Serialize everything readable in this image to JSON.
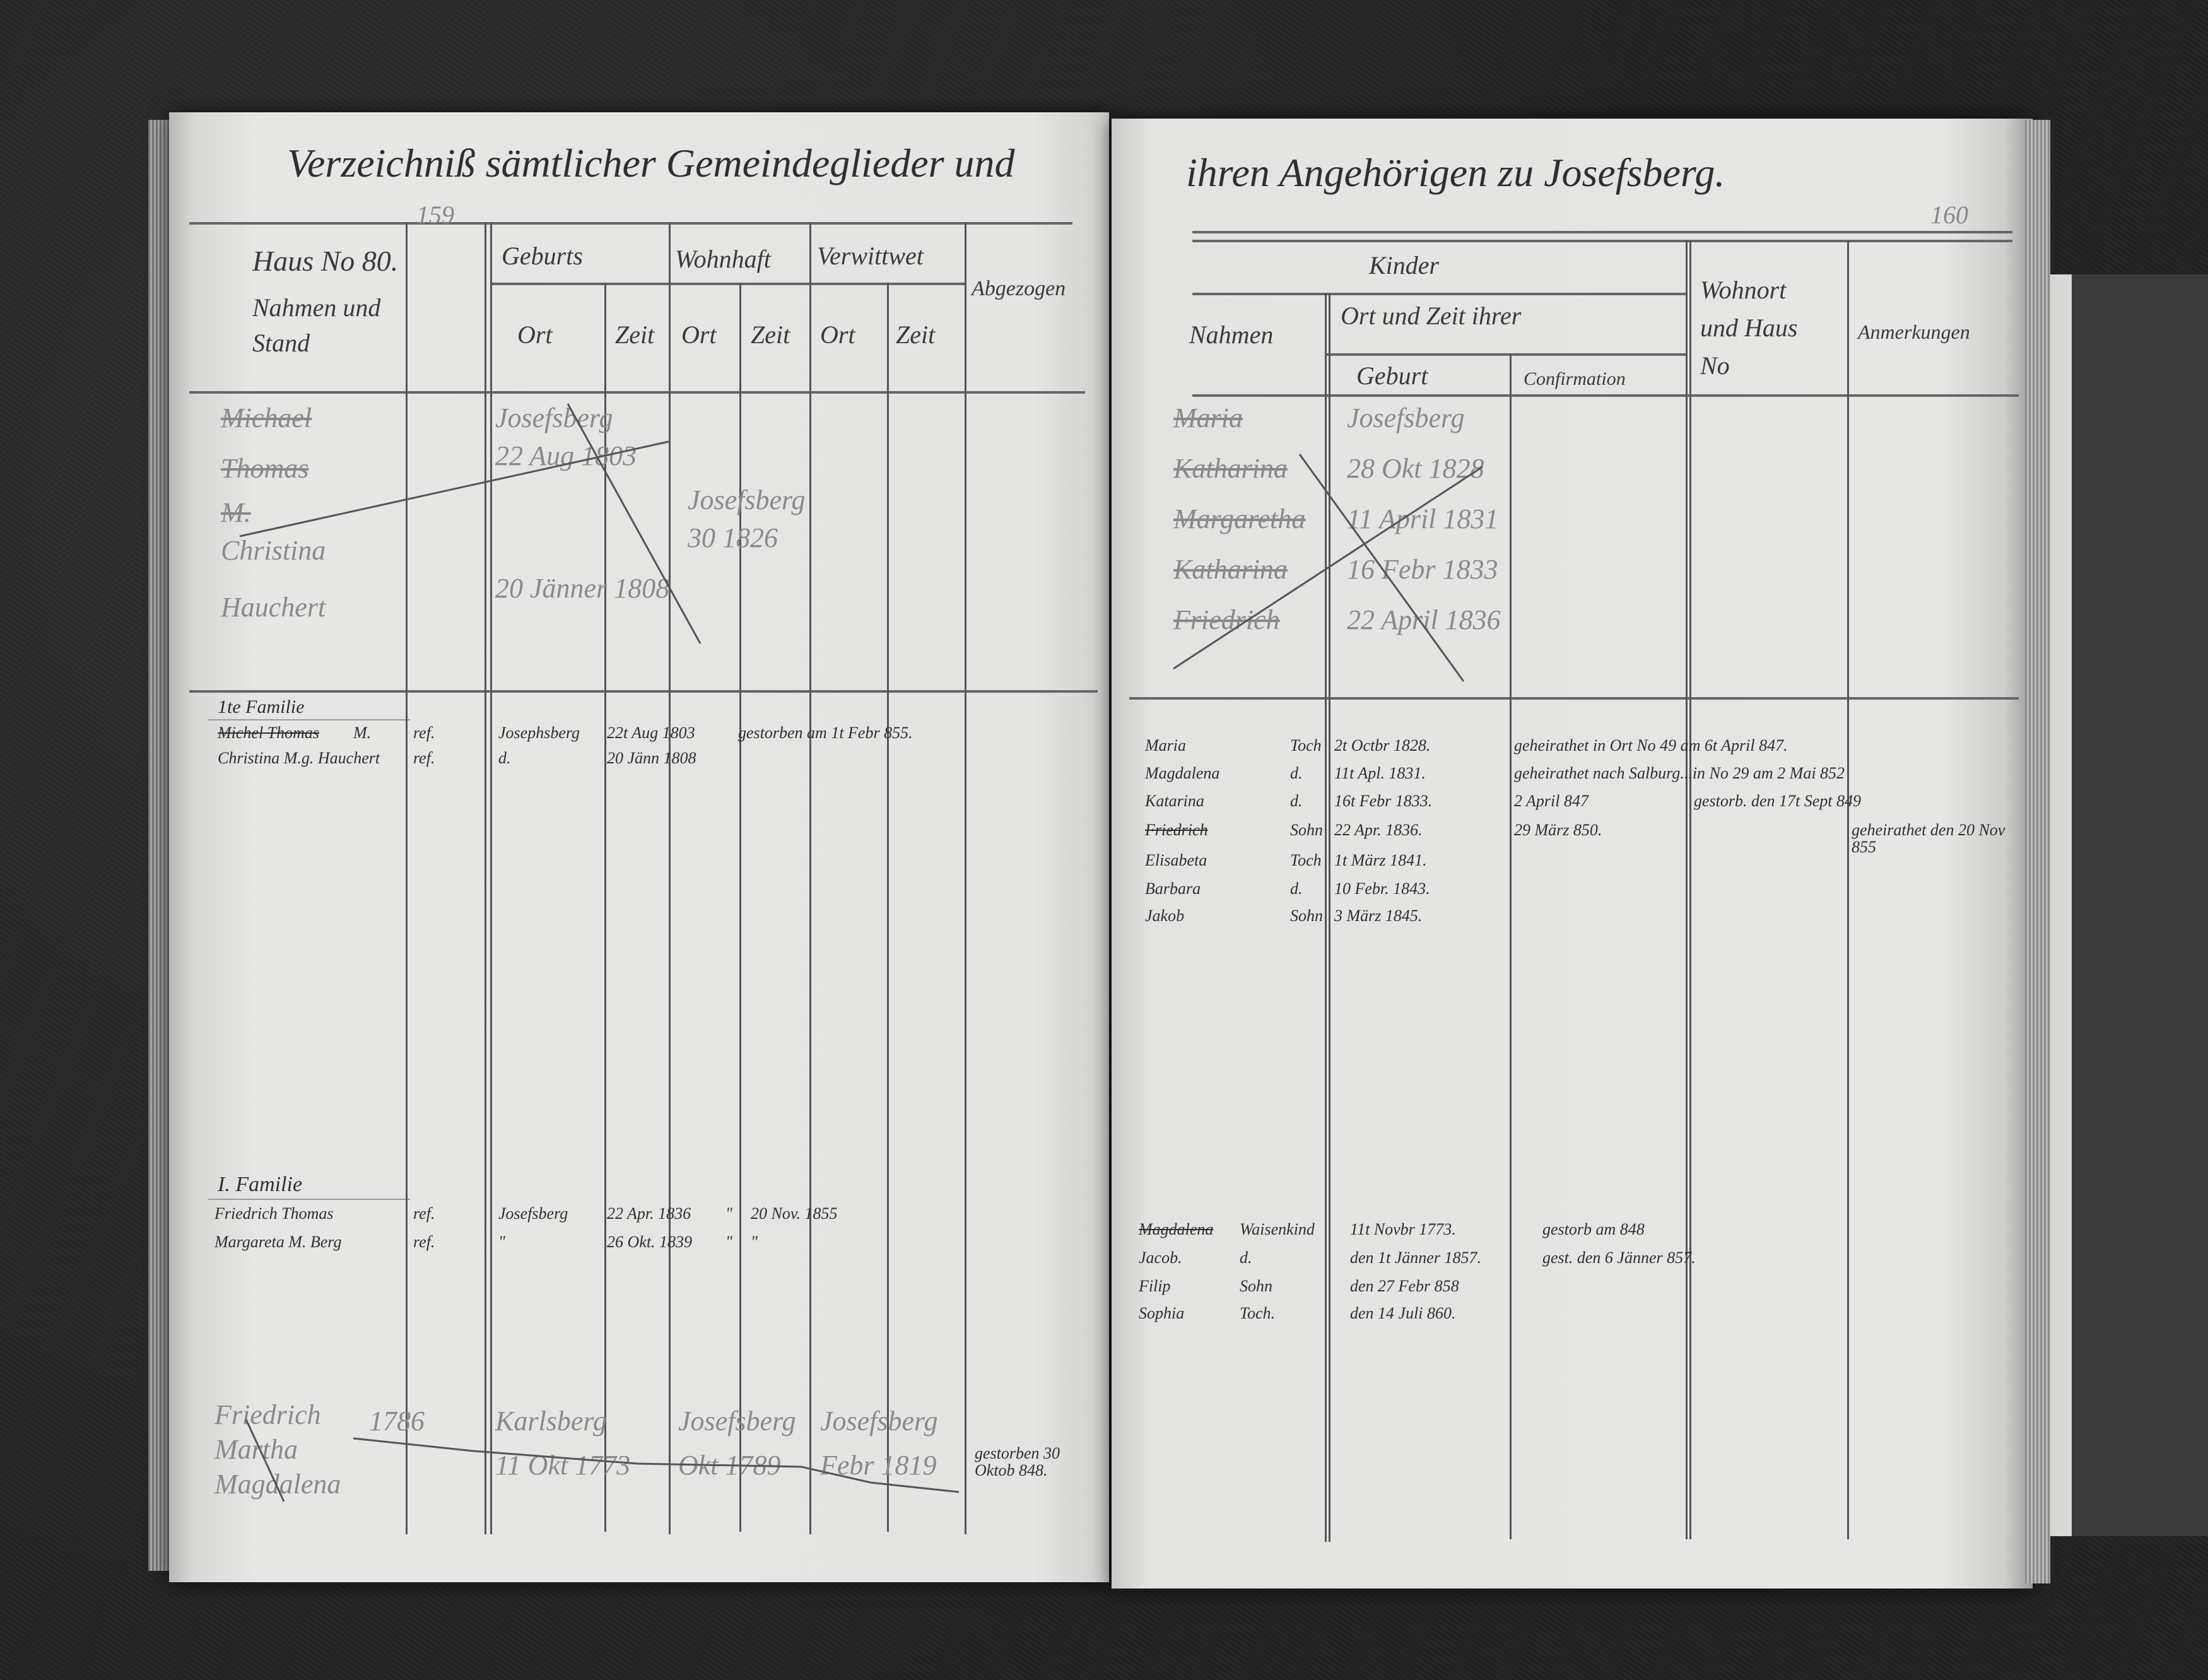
{
  "left_page": {
    "title": "Verzeichniß sämtlicher Gemeindeglieder und",
    "pencil_page_number": "159",
    "headers": {
      "house_no": "Haus No 80.",
      "name_stand": "Nahmen und Stand",
      "birth": "Geburts",
      "residence": "Wohnhaft",
      "widowed": "Verwittwet",
      "place": "Ort",
      "time": "Zeit",
      "departed": "Abgezogen"
    },
    "crossed_entries": {
      "names": [
        "Michael",
        "Thomas",
        "M.",
        "Christina",
        "Hauchert"
      ],
      "birth_place": "Josefsberg",
      "birth_dates": [
        "22 Aug 1803",
        "20 Jänner 1808"
      ],
      "residence": "Josefsberg",
      "residence_date": "30 1826"
    },
    "family_1": {
      "label": "1te Familie",
      "rows": [
        {
          "name": "Michel Thomas",
          "stand": "M.",
          "religion": "ref.",
          "birth_place": "Josephsberg",
          "birth_date": "22t Aug 1803",
          "remark": "gestorben am 1t Febr 855."
        },
        {
          "name": "Christina M.g. Hauchert",
          "stand": "",
          "religion": "ref.",
          "birth_place": "d.",
          "birth_date": "20 Jänn 1808",
          "remark": ""
        }
      ]
    },
    "family_I": {
      "label": "I. Familie",
      "rows": [
        {
          "name": "Friedrich Thomas",
          "religion": "ref.",
          "birth_place": "Josefsberg",
          "birth_date": "22 Apr. 1836",
          "residence": "\"",
          "residence_date": "20 Nov. 1855"
        },
        {
          "name": "Margareta M. Berg",
          "religion": "ref.",
          "birth_place": "\"",
          "birth_date": "26 Okt. 1839",
          "residence": "\"",
          "residence_date": "\""
        }
      ]
    },
    "bottom_crossed": {
      "names": [
        "Friedrich",
        "Martha",
        "Magdalena"
      ],
      "entries": [
        "1786",
        "Karlsberg",
        "11 Okt 1773",
        "Josefsberg",
        "Okt 1789",
        "Josefsberg",
        "Febr 1819"
      ],
      "remark": "gestorben 30 Oktob 848."
    }
  },
  "right_page": {
    "title": "ihren Angehörigen zu Josefsberg.",
    "page_number": "160",
    "headers": {
      "children": "Kinder",
      "names": "Nahmen",
      "place_time": "Ort und Zeit ihrer",
      "birth": "Geburt",
      "confirmation": "Confirmation",
      "residence_house": "Wohnort und Haus No",
      "remarks": "Anmerkungen"
    },
    "crossed_entries": {
      "children": [
        "Maria",
        "Katharina",
        "Margaretha",
        "Katharina",
        "Friedrich"
      ],
      "births": [
        "Josefsberg",
        "28 Okt 1828",
        "11 April 1831",
        "16 Febr 1833",
        "22 April 1836"
      ]
    },
    "family_1_children": [
      {
        "name": "Maria",
        "rel": "Toch",
        "birth": "2t Octbr 1828.",
        "confirmation": "geheirathet in Ort No 49 am 6t April 847.",
        "residence": "",
        "remarks": ""
      },
      {
        "name": "Magdalena",
        "rel": "d.",
        "birth": "11t Apl. 1831.",
        "confirmation": "geheirathet nach Salburg...in No 29 am 2 Mai 852",
        "residence": "",
        "remarks": ""
      },
      {
        "name": "Katarina",
        "rel": "d.",
        "birth": "16t Febr 1833.",
        "confirmation": "2 April 847",
        "residence": "gestorb. den 17t Sept 849",
        "remarks": ""
      },
      {
        "name": "Friedrich",
        "rel": "Sohn",
        "birth": "22 Apr. 1836.",
        "confirmation": "29 März 850.",
        "residence": "",
        "remarks": "geheirathet den 20 Nov 855"
      },
      {
        "name": "Elisabeta",
        "rel": "Toch",
        "birth": "1t März 1841.",
        "confirmation": "",
        "residence": "",
        "remarks": ""
      },
      {
        "name": "Barbara",
        "rel": "d.",
        "birth": "10 Febr. 1843.",
        "confirmation": "",
        "residence": "",
        "remarks": ""
      },
      {
        "name": "Jakob",
        "rel": "Sohn",
        "birth": "3 März 1845.",
        "confirmation": "",
        "residence": "",
        "remarks": ""
      }
    ],
    "family_I_children": [
      {
        "name": "Magdalena",
        "rel": "Waisenkind",
        "birth": "11t Novbr 1773.",
        "confirmation": "gestorb am 848",
        "residence": ""
      },
      {
        "name": "Jacob.",
        "rel": "d.",
        "birth": "den 1t Jänner 1857.",
        "confirmation": "gest. den 6 Jänner 857.",
        "residence": ""
      },
      {
        "name": "Filip",
        "rel": "Sohn",
        "birth": "den 27 Febr 858",
        "confirmation": "",
        "residence": ""
      },
      {
        "name": "Sophia",
        "rel": "Toch.",
        "birth": "den 14 Juli 860.",
        "confirmation": "",
        "residence": ""
      }
    ]
  }
}
